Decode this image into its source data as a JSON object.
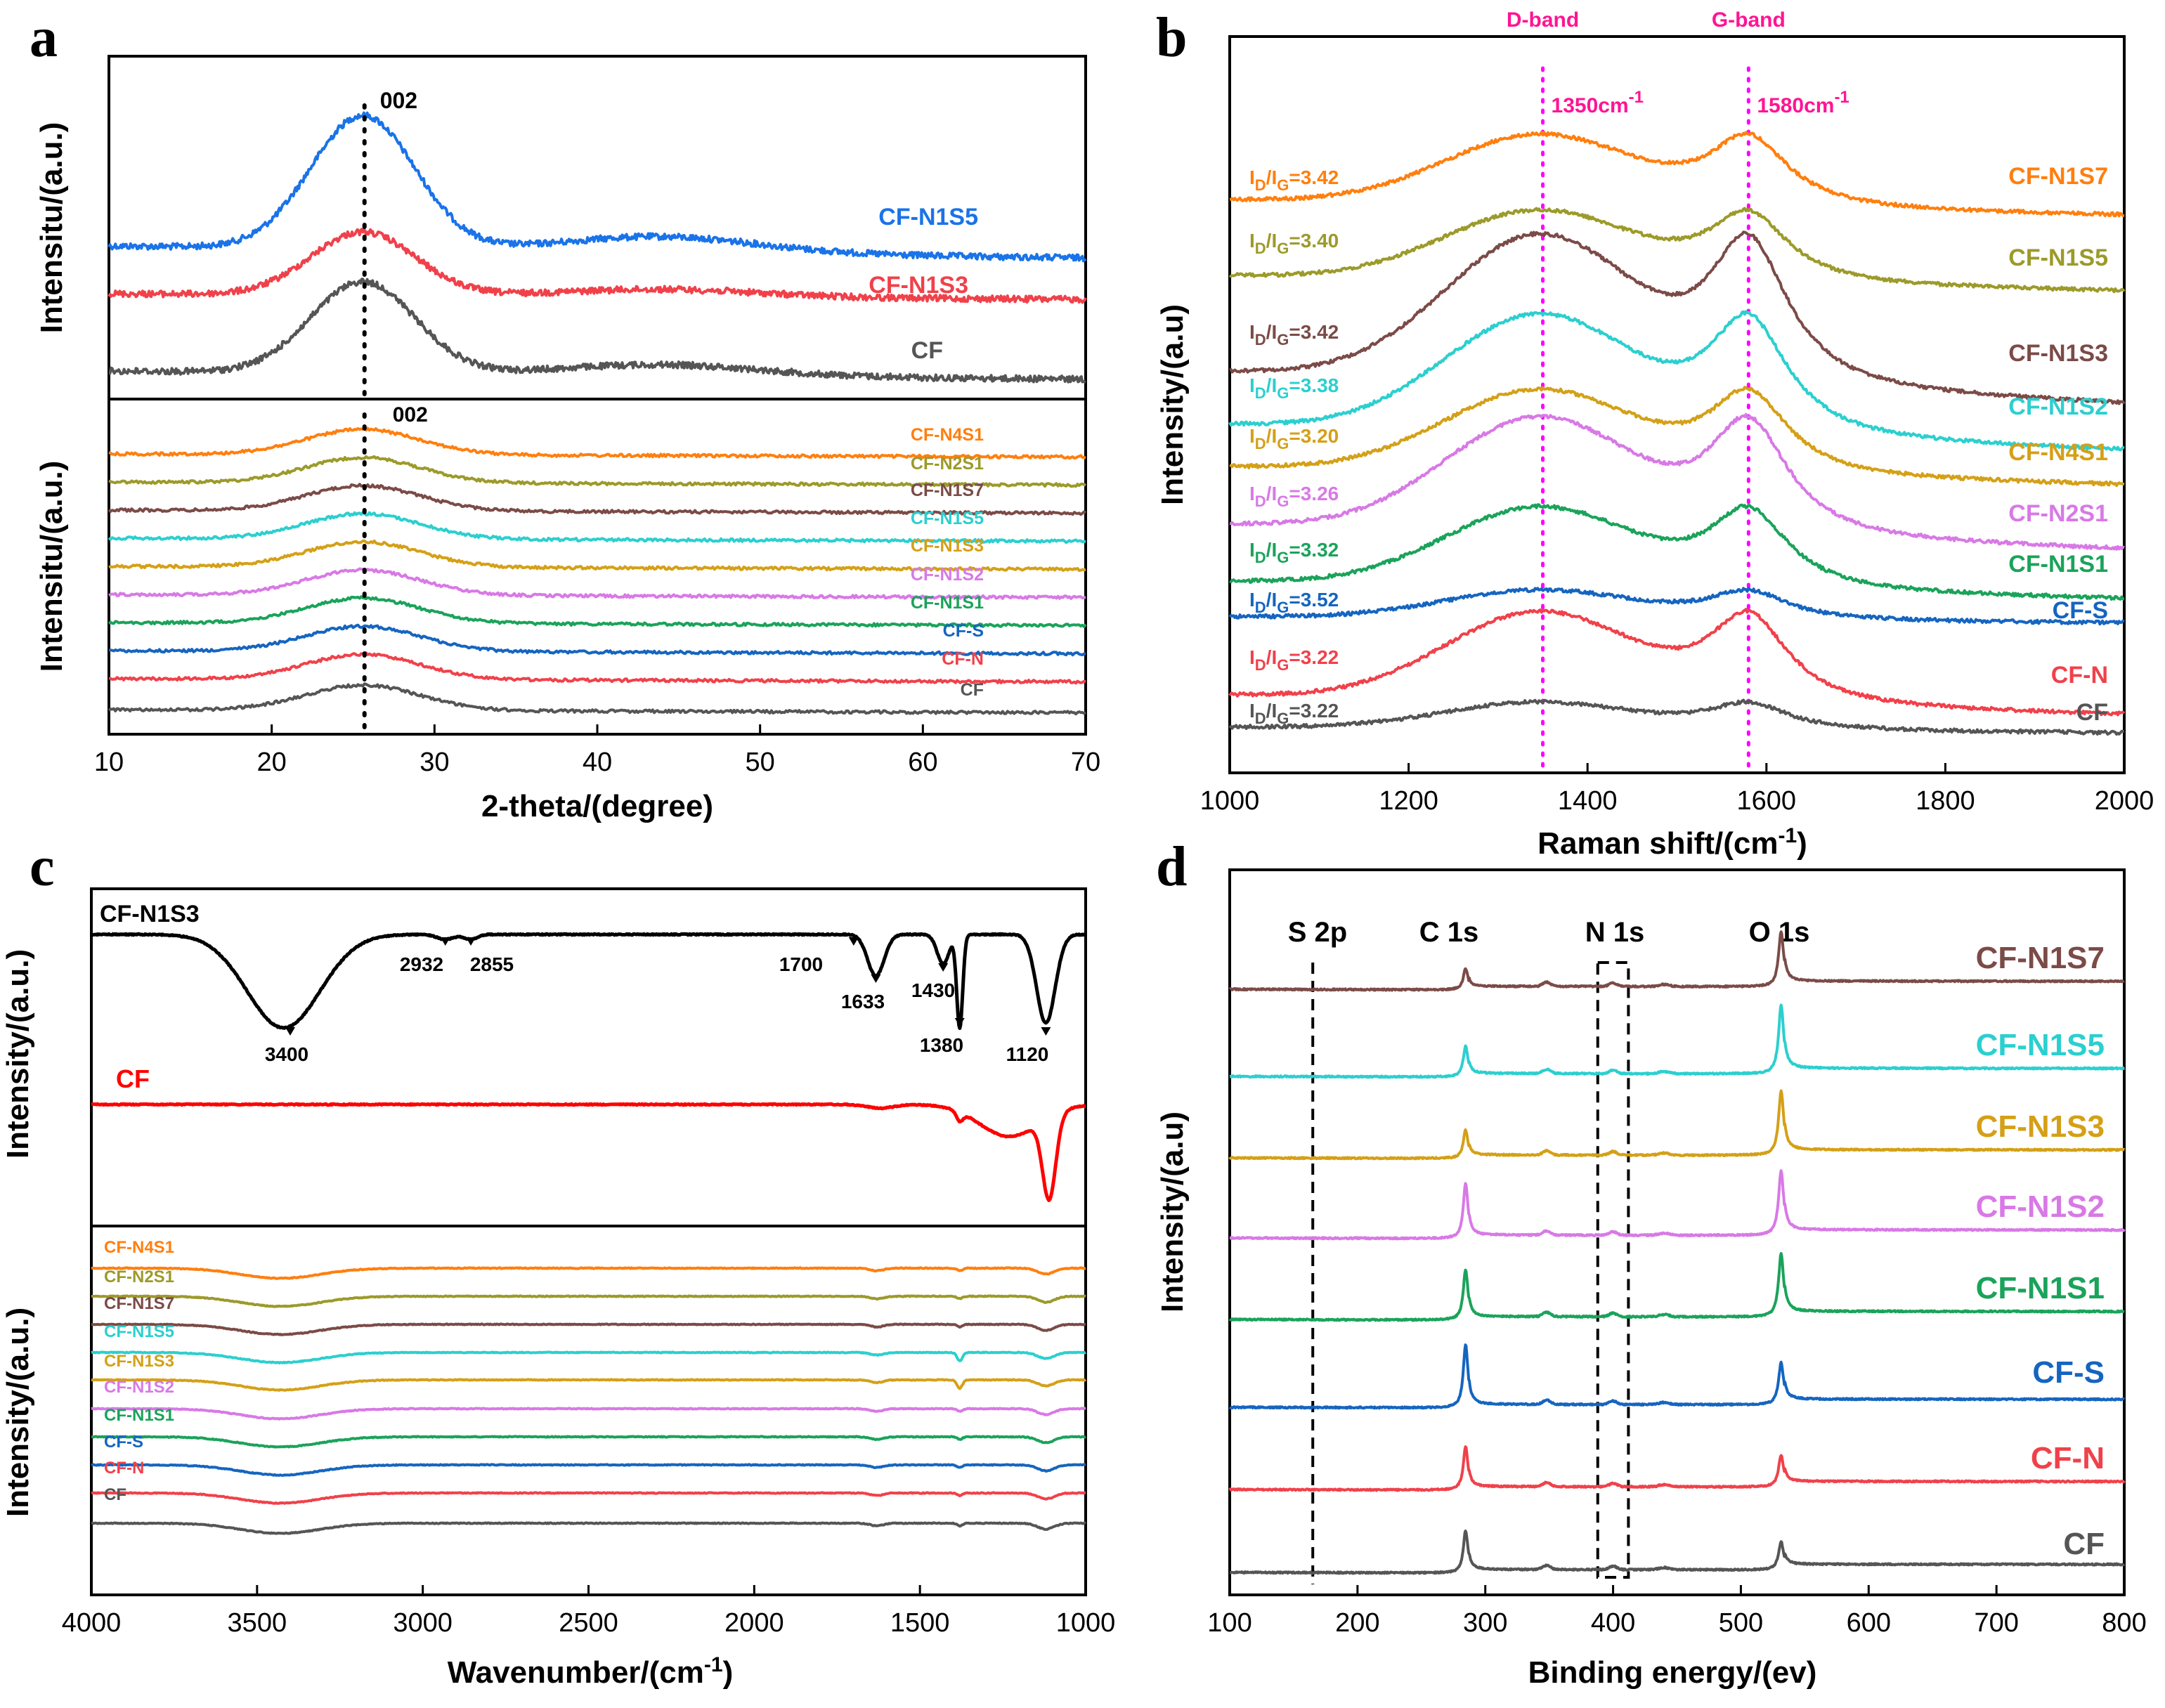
{
  "colors": {
    "CF": "#555555",
    "CF-N": "#f0414a",
    "CF-S": "#1565c0",
    "CF-N1S1": "#1aa35a",
    "CF-N1S2": "#d879e6",
    "CF-N1S3": "#d4a017",
    "CF-N1S5": "#2ccfcf",
    "CF-N1S7": "#7b4b47",
    "CF-N2S1": "#9c9a2a",
    "CF-N4S1": "#ff7f0e",
    "black": "#000000",
    "red": "#ff0000",
    "xrd_blue": "#1a73e8",
    "magenta": "#ff00ff"
  },
  "chart_data": [
    {
      "panel": "a",
      "type": "line",
      "xlabel": "2-theta/(degree)",
      "xlim": [
        10,
        70
      ],
      "xticks": [
        10,
        20,
        30,
        40,
        50,
        60,
        70
      ],
      "subplots": [
        {
          "ylabel": "Intensitu/(a.u.)",
          "peak_label": "002",
          "peak_x": 25.7,
          "series": [
            {
              "name": "CF-N1S5",
              "peak": 25.6,
              "baseline": 0.4,
              "amplitude": 0.34,
              "color_key": "xrd_blue"
            },
            {
              "name": "CF-N1S3",
              "peak": 25.6,
              "baseline": 0.22,
              "amplitude": 0.2,
              "color_key": "CF-N"
            },
            {
              "name": "CF",
              "peak": 25.6,
              "baseline": 0.03,
              "amplitude": 0.3,
              "color_key": "CF"
            }
          ]
        },
        {
          "ylabel": "Intensitu/(a.u.)",
          "peak_label": "002",
          "peak_x": 25.7,
          "series": [
            {
              "name": "CF-N4S1",
              "peak": 25.6,
              "color_key": "CF-N4S1"
            },
            {
              "name": "CF-N2S1",
              "peak": 25.6,
              "color_key": "CF-N2S1"
            },
            {
              "name": "CF-N1S7",
              "peak": 25.6,
              "color_key": "CF-N1S7"
            },
            {
              "name": "CF-N1S5",
              "peak": 25.6,
              "color_key": "CF-N1S5"
            },
            {
              "name": "CF-N1S3",
              "peak": 25.6,
              "color_key": "CF-N1S3"
            },
            {
              "name": "CF-N1S2",
              "peak": 25.6,
              "color_key": "CF-N1S2"
            },
            {
              "name": "CF-N1S1",
              "peak": 25.6,
              "color_key": "CF-N1S1"
            },
            {
              "name": "CF-S",
              "peak": 25.6,
              "color_key": "CF-S"
            },
            {
              "name": "CF-N",
              "peak": 25.6,
              "color_key": "CF-N"
            },
            {
              "name": "CF",
              "peak": 25.6,
              "color_key": "CF"
            }
          ]
        }
      ]
    },
    {
      "panel": "b",
      "type": "line",
      "xlabel": "Raman shift/(cm",
      "xlabel_sup": "-1",
      "xlabel_end": ")",
      "ylabel": "Intensity/(a.u)",
      "xlim": [
        1000,
        2000
      ],
      "xticks": [
        1000,
        1200,
        1400,
        1600,
        1800,
        2000
      ],
      "bands": [
        {
          "name": "D-band",
          "position": 1350,
          "label": "1350cm",
          "sup": "-1"
        },
        {
          "name": "G-band",
          "position": 1580,
          "label": "1580cm",
          "sup": "-1"
        }
      ],
      "ratio_prefix": "I",
      "ratio_sub_d": "D",
      "ratio_mid": "/I",
      "ratio_sub_g": "G",
      "series": [
        {
          "name": "CF-N1S7",
          "ratio": "=3.42",
          "color_key": "CF-N4S1"
        },
        {
          "name": "CF-N1S5",
          "ratio": "=3.40",
          "color_key": "CF-N2S1"
        },
        {
          "name": "CF-N1S3",
          "ratio": "=3.42",
          "color_key": "CF-N1S7"
        },
        {
          "name": "CF-N1S2",
          "ratio": "=3.38",
          "color_key": "CF-N1S5"
        },
        {
          "name": "CF-N4S1",
          "ratio": "=3.20",
          "color_key": "CF-N1S3"
        },
        {
          "name": "CF-N2S1",
          "ratio": "=3.26",
          "color_key": "CF-N1S2"
        },
        {
          "name": "CF-N1S1",
          "ratio": "=3.32",
          "color_key": "CF-N1S1"
        },
        {
          "name": "CF-S",
          "ratio": "=3.52",
          "color_key": "CF-S"
        },
        {
          "name": "CF-N",
          "ratio": "=3.22",
          "color_key": "CF-N"
        },
        {
          "name": "CF",
          "ratio": "=3.22",
          "color_key": "CF"
        }
      ]
    },
    {
      "panel": "c",
      "type": "line",
      "xlabel": "Wavenumber/(cm",
      "xlabel_sup": "-1",
      "xlabel_end": ")",
      "ylabel_top": "Intensity/(a.u.)",
      "ylabel_bottom": "Intensity/(a.u.)",
      "xlim": [
        4000,
        1000
      ],
      "xticks": [
        4000,
        3500,
        3000,
        2500,
        2000,
        1500,
        1000
      ],
      "top_series": [
        {
          "name": "CF-N1S3",
          "color_key": "black"
        },
        {
          "name": "CF",
          "color_key": "red"
        }
      ],
      "peaks": [
        {
          "label": "3400",
          "x": 3400
        },
        {
          "label": "2932",
          "x": 2932
        },
        {
          "label": "2855",
          "x": 2855
        },
        {
          "label": "1700",
          "x": 1700
        },
        {
          "label": "1633",
          "x": 1633
        },
        {
          "label": "1430",
          "x": 1430
        },
        {
          "label": "1380",
          "x": 1380
        },
        {
          "label": "1120",
          "x": 1120
        }
      ],
      "series": [
        {
          "name": "CF-N4S1",
          "color_key": "CF-N4S1"
        },
        {
          "name": "CF-N2S1",
          "color_key": "CF-N2S1"
        },
        {
          "name": "CF-N1S7",
          "color_key": "CF-N1S7"
        },
        {
          "name": "CF-N1S5",
          "color_key": "CF-N1S5"
        },
        {
          "name": "CF-N1S3",
          "color_key": "CF-N1S3"
        },
        {
          "name": "CF-N1S2",
          "color_key": "CF-N1S2"
        },
        {
          "name": "CF-N1S1",
          "color_key": "CF-N1S1"
        },
        {
          "name": "CF-S",
          "color_key": "CF-S"
        },
        {
          "name": "CF-N",
          "color_key": "CF-N"
        },
        {
          "name": "CF",
          "color_key": "CF"
        }
      ]
    },
    {
      "panel": "d",
      "type": "line",
      "xlabel": "Binding energy/(ev)",
      "ylabel": "Intensity/(a.u)",
      "xlim": [
        100,
        800
      ],
      "xticks": [
        100,
        200,
        300,
        400,
        500,
        600,
        700,
        800
      ],
      "peak_labels": [
        {
          "label": "S 2p",
          "x": 165
        },
        {
          "label": "C 1s",
          "x": 284
        },
        {
          "label": "N 1s",
          "x": 400
        },
        {
          "label": "O 1s",
          "x": 531
        }
      ],
      "series": [
        {
          "name": "CF-N1S7",
          "color_key": "CF-N1S7"
        },
        {
          "name": "CF-N1S5",
          "color_key": "CF-N1S5"
        },
        {
          "name": "CF-N1S3",
          "color_key": "CF-N1S3"
        },
        {
          "name": "CF-N1S2",
          "color_key": "CF-N1S2"
        },
        {
          "name": "CF-N1S1",
          "color_key": "CF-N1S1"
        },
        {
          "name": "CF-S",
          "color_key": "CF-S"
        },
        {
          "name": "CF-N",
          "color_key": "CF-N"
        },
        {
          "name": "CF",
          "color_key": "CF"
        }
      ]
    }
  ],
  "panel_labels": [
    "a",
    "b",
    "c",
    "d"
  ]
}
